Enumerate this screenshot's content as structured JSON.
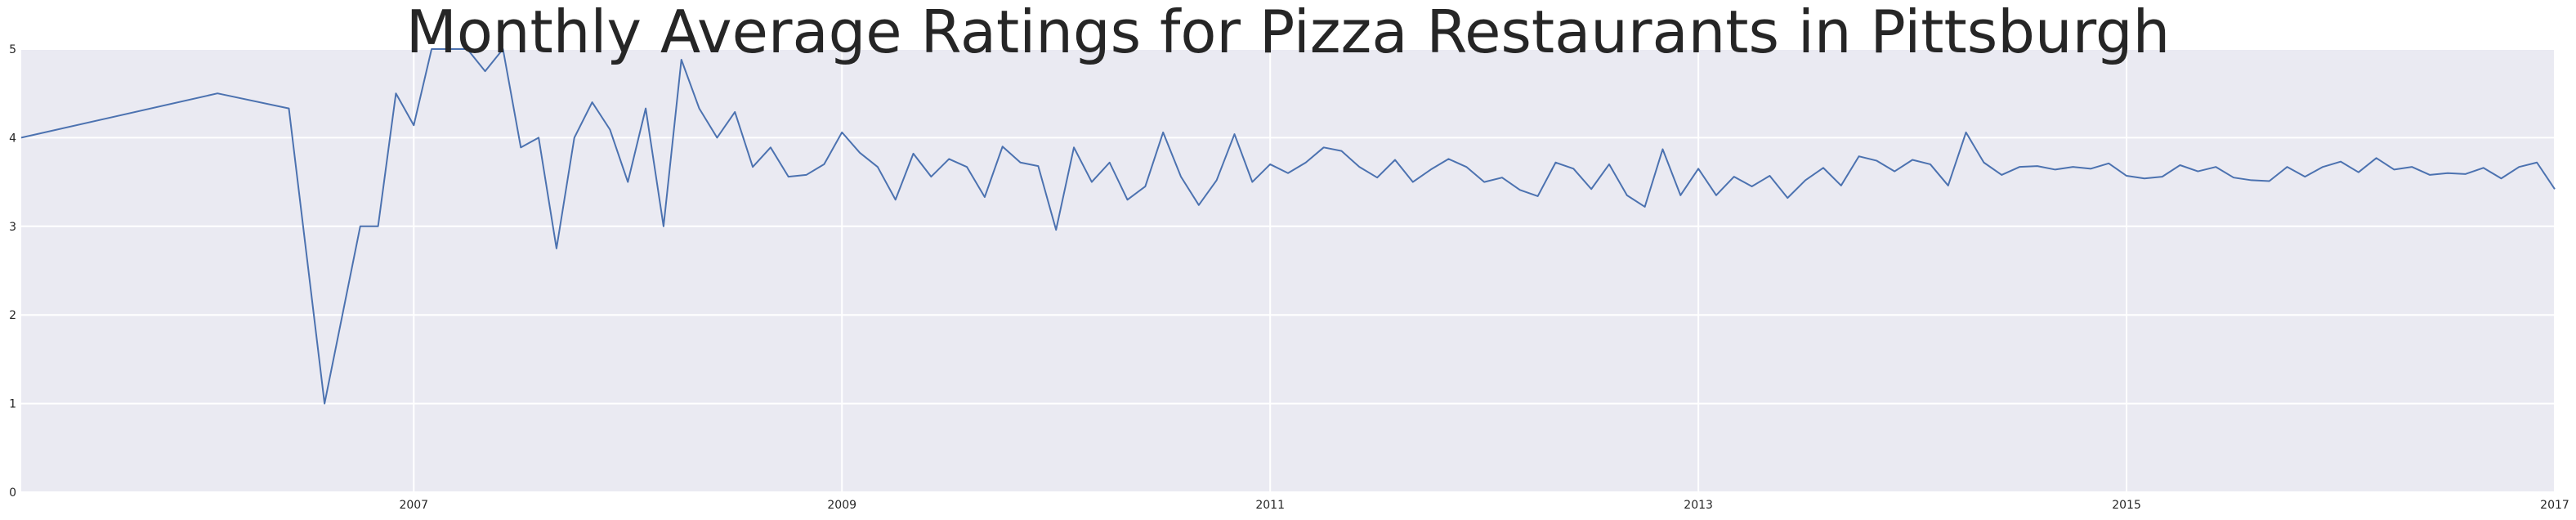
{
  "chart_data": {
    "type": "line",
    "title": "Monthly Average Ratings for Pizza Restaurants in Pittsburgh",
    "xlabel": "",
    "ylabel": "",
    "xlim": [
      "2005-03",
      "2017-01"
    ],
    "ylim": [
      0,
      5
    ],
    "grid": true,
    "legend": "none",
    "x_ticks": [
      "2007",
      "2009",
      "2011",
      "2013",
      "2015",
      "2017"
    ],
    "y_ticks": [
      "0",
      "1",
      "2",
      "3",
      "4",
      "5"
    ],
    "colors": {
      "background": "#eaeaf2",
      "grid": "#ffffff",
      "line": "#4c72b0",
      "text": "#262626"
    },
    "series": [
      {
        "x": [
          "2005-03",
          "2006-02",
          "2006-06",
          "2006-08",
          "2006-10",
          "2006-11",
          "2006-12",
          "2007-01",
          "2007-02",
          "2007-03",
          "2007-04",
          "2007-05",
          "2007-06",
          "2007-07",
          "2007-08",
          "2007-09",
          "2007-10",
          "2007-11",
          "2007-12",
          "2008-01",
          "2008-02",
          "2008-03",
          "2008-04",
          "2008-05",
          "2008-06",
          "2008-07",
          "2008-08",
          "2008-09",
          "2008-10",
          "2008-11",
          "2008-12",
          "2009-01",
          "2009-02",
          "2009-03",
          "2009-04",
          "2009-05",
          "2009-06",
          "2009-07",
          "2009-08",
          "2009-09",
          "2009-10",
          "2009-11",
          "2009-12",
          "2010-01",
          "2010-02",
          "2010-03",
          "2010-04",
          "2010-05",
          "2010-06",
          "2010-07",
          "2010-08",
          "2010-09",
          "2010-10",
          "2010-11",
          "2010-12",
          "2011-01",
          "2011-02",
          "2011-03",
          "2011-04",
          "2011-05",
          "2011-06",
          "2011-07",
          "2011-08",
          "2011-09",
          "2011-10",
          "2011-11",
          "2011-12",
          "2012-01",
          "2012-02",
          "2012-03",
          "2012-04",
          "2012-05",
          "2012-06",
          "2012-07",
          "2012-08",
          "2012-09",
          "2012-10",
          "2012-11",
          "2012-12",
          "2013-01",
          "2013-02",
          "2013-03",
          "2013-04",
          "2013-05",
          "2013-06",
          "2013-07",
          "2013-08",
          "2013-09",
          "2013-10",
          "2013-11",
          "2013-12",
          "2014-01",
          "2014-02",
          "2014-03",
          "2014-04",
          "2014-05",
          "2014-06",
          "2014-07",
          "2014-08",
          "2014-09",
          "2014-10",
          "2014-11",
          "2014-12",
          "2015-01",
          "2015-02",
          "2015-03",
          "2015-04",
          "2015-05",
          "2015-06",
          "2015-07",
          "2015-08",
          "2015-09",
          "2015-10",
          "2015-11",
          "2015-12",
          "2016-01",
          "2016-02",
          "2016-03",
          "2016-04",
          "2016-05",
          "2016-06",
          "2016-07",
          "2016-08",
          "2016-09",
          "2016-10",
          "2016-11",
          "2016-12",
          "2017-01"
        ],
        "values": [
          4.0,
          4.5,
          4.33,
          1.0,
          3.0,
          3.0,
          4.5,
          4.14,
          5.0,
          5.0,
          5.0,
          4.75,
          5.0,
          3.89,
          4.0,
          2.75,
          4.0,
          4.4,
          4.09,
          3.5,
          4.33,
          3.0,
          4.88,
          4.33,
          4.0,
          4.29,
          3.67,
          3.89,
          3.56,
          3.58,
          3.7,
          4.06,
          3.83,
          3.67,
          3.3,
          3.82,
          3.56,
          3.76,
          3.67,
          3.33,
          3.9,
          3.72,
          3.68,
          2.96,
          3.89,
          3.5,
          3.72,
          3.3,
          3.45,
          4.06,
          3.56,
          3.24,
          3.52,
          4.04,
          3.5,
          3.7,
          3.6,
          3.72,
          3.89,
          3.85,
          3.67,
          3.55,
          3.75,
          3.5,
          3.64,
          3.76,
          3.67,
          3.5,
          3.55,
          3.41,
          3.34,
          3.72,
          3.65,
          3.42,
          3.7,
          3.35,
          3.22,
          3.87,
          3.35,
          3.65,
          3.35,
          3.56,
          3.45,
          3.57,
          3.32,
          3.52,
          3.66,
          3.46,
          3.79,
          3.74,
          3.62,
          3.75,
          3.7,
          3.46,
          4.06,
          3.72,
          3.58,
          3.67,
          3.68,
          3.64,
          3.67,
          3.65,
          3.71,
          3.57,
          3.54,
          3.56,
          3.69,
          3.62,
          3.67,
          3.55,
          3.52,
          3.51,
          3.67,
          3.56,
          3.67,
          3.73,
          3.61,
          3.77,
          3.64,
          3.67,
          3.58,
          3.6,
          3.59,
          3.66,
          3.54,
          3.67,
          3.72,
          3.42
        ]
      }
    ]
  }
}
